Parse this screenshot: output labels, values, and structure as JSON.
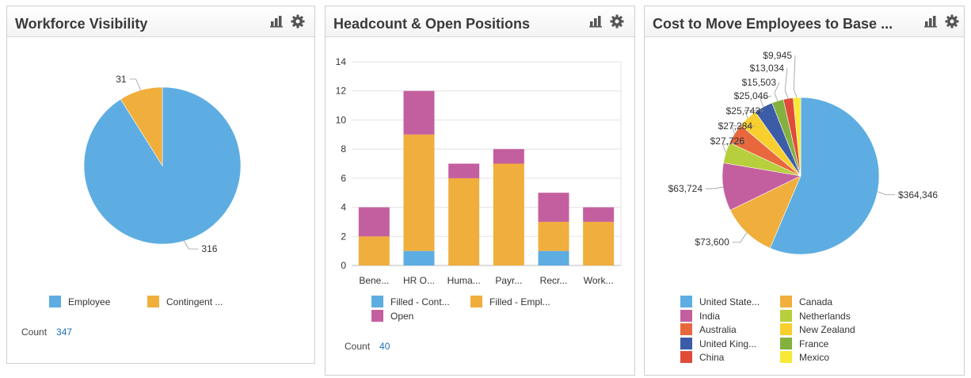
{
  "panels": [
    {
      "title": "Workforce Visibility",
      "count_label": "Count",
      "count_value": "347"
    },
    {
      "title": "Headcount & Open Positions",
      "count_label": "Count",
      "count_value": "40"
    },
    {
      "title": "Cost to Move Employees to Base ...",
      "count_label": "",
      "count_value": ""
    }
  ],
  "icons": {
    "chart": "bar-chart-icon",
    "settings": "gear-icon"
  },
  "chart_data": [
    {
      "type": "pie",
      "title": "Workforce Visibility",
      "slices": [
        {
          "label": "Employee",
          "value": 316,
          "display": "316",
          "color": "#5dade2"
        },
        {
          "label": "Contingent ...",
          "value": 31,
          "display": "31",
          "color": "#f0ae3c"
        }
      ],
      "legend": "bottom"
    },
    {
      "type": "bar",
      "stacked": true,
      "title": "Headcount & Open Positions",
      "categories": [
        "Bene...",
        "HR O...",
        "Huma...",
        "Payr...",
        "Recr...",
        "Work..."
      ],
      "ylim": [
        0,
        14
      ],
      "yticks": [
        0,
        2,
        4,
        6,
        8,
        10,
        12,
        14
      ],
      "grid": true,
      "series": [
        {
          "name": "Filled - Cont...",
          "color": "#5dade2",
          "values": [
            0,
            1,
            0,
            0,
            1,
            0
          ]
        },
        {
          "name": "Filled - Empl...",
          "color": "#f0ae3c",
          "values": [
            2,
            8,
            6,
            7,
            2,
            3
          ]
        },
        {
          "name": "Open",
          "color": "#c45f9f",
          "values": [
            2,
            3,
            1,
            1,
            2,
            1
          ]
        }
      ],
      "legend": "bottom"
    },
    {
      "type": "pie",
      "title": "Cost to Move Employees to Base ...",
      "slices": [
        {
          "label": "United State...",
          "value": 364346,
          "display": "$364,346",
          "color": "#5dade2"
        },
        {
          "label": "Canada",
          "value": 73600,
          "display": "$73,600",
          "color": "#f0ae3c"
        },
        {
          "label": "India",
          "value": 63724,
          "display": "$63,724",
          "color": "#c45f9f"
        },
        {
          "label": "Netherlands",
          "value": 27726,
          "display": "$27,726",
          "color": "#b8cf3d"
        },
        {
          "label": "Australia",
          "value": 27284,
          "display": "$27,284",
          "color": "#e8673d"
        },
        {
          "label": "New Zealand",
          "value": 25743,
          "display": "$25,743",
          "color": "#f8cf2f"
        },
        {
          "label": "United King...",
          "value": 25046,
          "display": "$25,046",
          "color": "#3d5ca8"
        },
        {
          "label": "France",
          "value": 15503,
          "display": "$15,503",
          "color": "#84b040"
        },
        {
          "label": "China",
          "value": 13034,
          "display": "$13,034",
          "color": "#e04b3a"
        },
        {
          "label": "Mexico",
          "value": 9945,
          "display": "$9,945",
          "color": "#f8e838"
        }
      ],
      "legend": "bottom"
    }
  ]
}
